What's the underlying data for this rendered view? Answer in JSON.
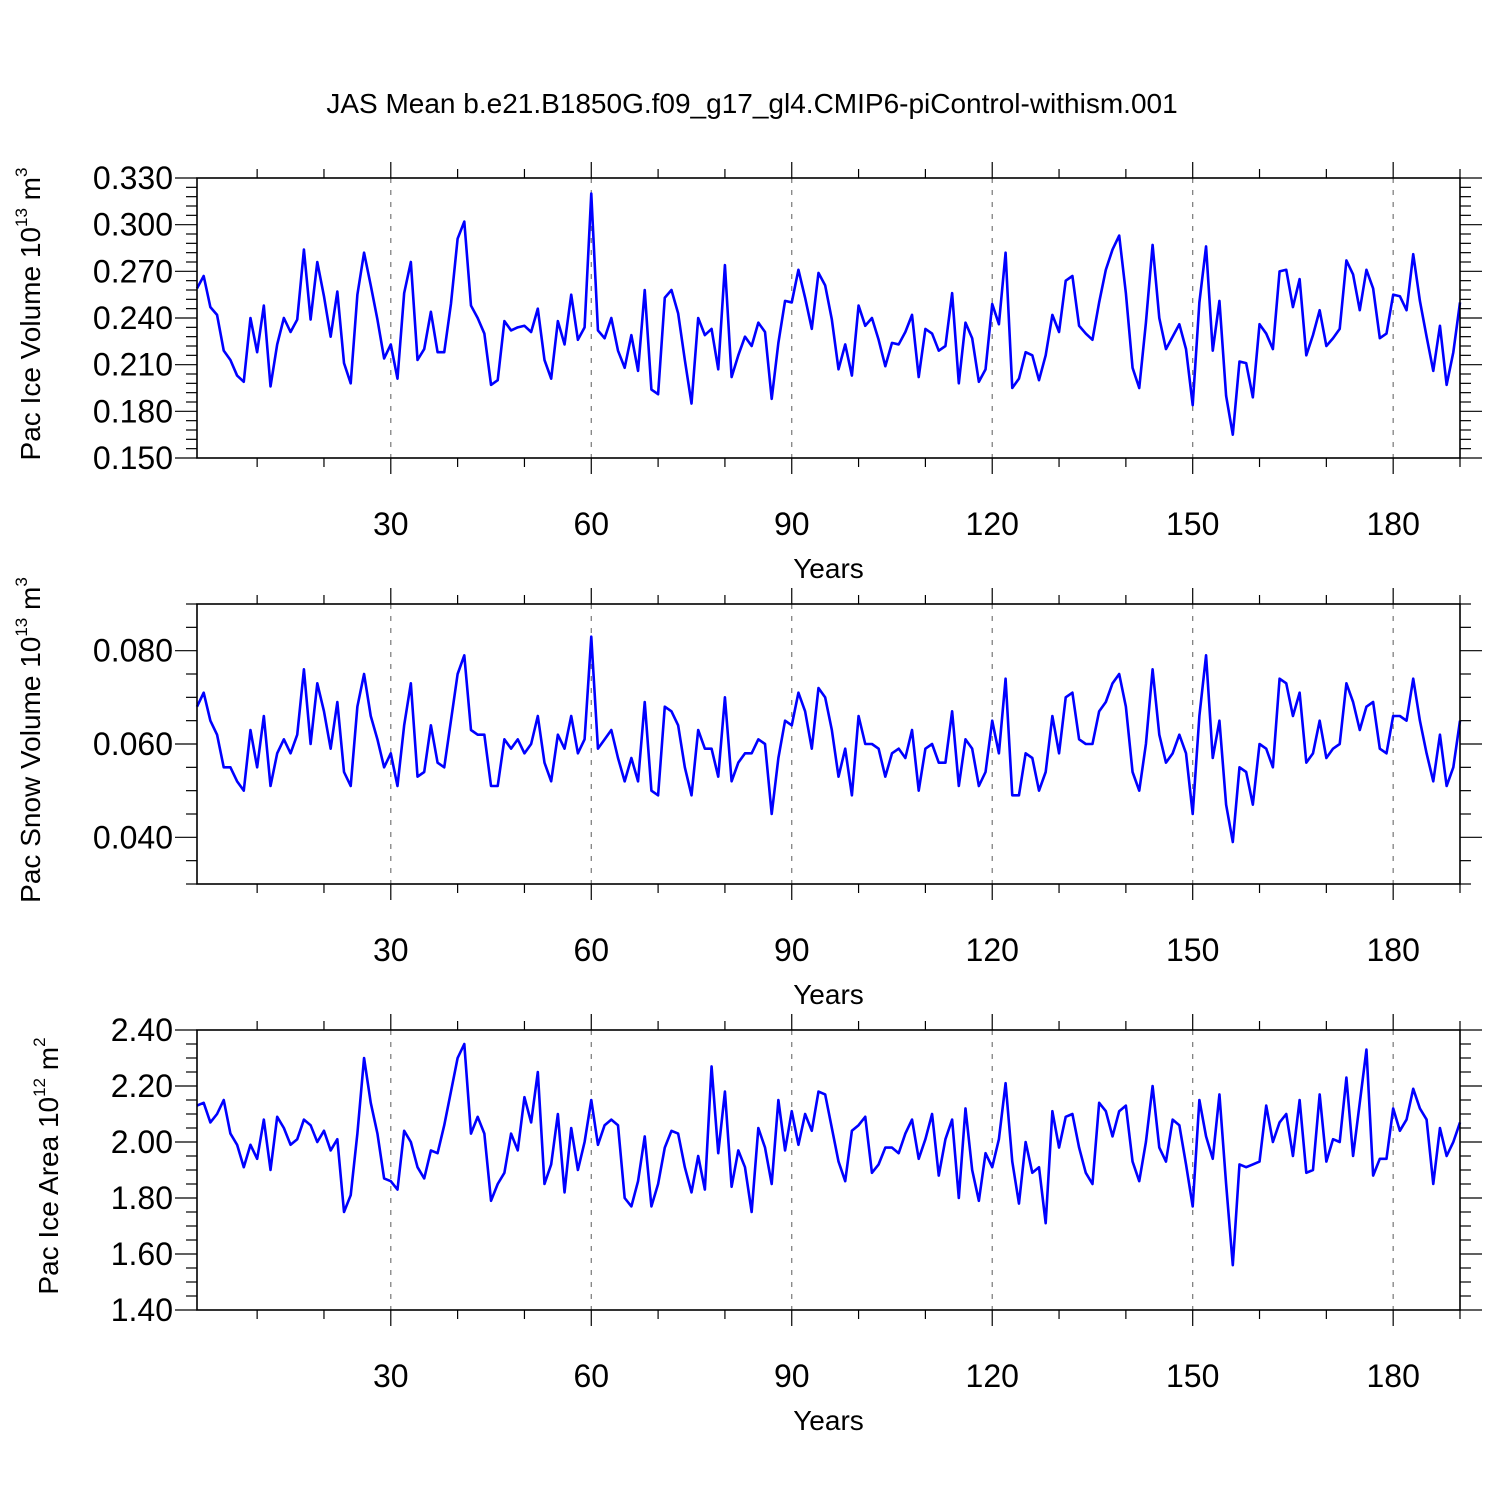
{
  "title": "JAS Mean b.e21.B1850G.f09_g17_gl4.CMIP6-piControl-withism.001",
  "colors": {
    "line": "#0000ff",
    "grid": "#777777",
    "axis": "#000000"
  },
  "chart_data": [
    {
      "type": "line",
      "name": "pac-ice-volume",
      "ylabel": "Pac Ice Volume",
      "ylabel_base": "10",
      "ylabel_exp": "13",
      "ylabel_unit": "m",
      "ylabel_unit_exp": "3",
      "xlabel": "Years",
      "xlim": [
        1,
        190
      ],
      "ylim": [
        0.15,
        0.33
      ],
      "xticks": [
        30,
        60,
        90,
        120,
        150,
        180
      ],
      "xtick_labels": [
        "30",
        "60",
        "90",
        "120",
        "150",
        "180"
      ],
      "yticks": [
        0.15,
        0.18,
        0.21,
        0.24,
        0.27,
        0.3,
        0.33
      ],
      "ytick_labels": [
        "0.150",
        "0.180",
        "0.210",
        "0.240",
        "0.270",
        "0.300",
        "0.330"
      ],
      "x_start": 1,
      "values": [
        0.259,
        0.267,
        0.247,
        0.242,
        0.219,
        0.213,
        0.203,
        0.199,
        0.24,
        0.218,
        0.248,
        0.196,
        0.223,
        0.24,
        0.231,
        0.239,
        0.284,
        0.239,
        0.276,
        0.254,
        0.228,
        0.257,
        0.211,
        0.198,
        0.255,
        0.282,
        0.261,
        0.239,
        0.214,
        0.223,
        0.201,
        0.256,
        0.276,
        0.213,
        0.22,
        0.244,
        0.218,
        0.218,
        0.249,
        0.291,
        0.302,
        0.248,
        0.24,
        0.23,
        0.197,
        0.2,
        0.238,
        0.232,
        0.234,
        0.235,
        0.231,
        0.246,
        0.213,
        0.201,
        0.238,
        0.223,
        0.255,
        0.226,
        0.234,
        0.32,
        0.232,
        0.227,
        0.24,
        0.219,
        0.208,
        0.229,
        0.206,
        0.258,
        0.194,
        0.191,
        0.253,
        0.258,
        0.243,
        0.213,
        0.185,
        0.24,
        0.229,
        0.233,
        0.207,
        0.274,
        0.202,
        0.216,
        0.228,
        0.222,
        0.237,
        0.231,
        0.188,
        0.224,
        0.251,
        0.25,
        0.271,
        0.253,
        0.233,
        0.269,
        0.261,
        0.239,
        0.207,
        0.223,
        0.203,
        0.248,
        0.235,
        0.24,
        0.226,
        0.209,
        0.224,
        0.223,
        0.231,
        0.242,
        0.202,
        0.233,
        0.23,
        0.219,
        0.222,
        0.256,
        0.198,
        0.237,
        0.227,
        0.199,
        0.207,
        0.249,
        0.236,
        0.282,
        0.195,
        0.201,
        0.218,
        0.216,
        0.2,
        0.216,
        0.242,
        0.231,
        0.264,
        0.267,
        0.235,
        0.23,
        0.226,
        0.25,
        0.271,
        0.284,
        0.293,
        0.256,
        0.208,
        0.195,
        0.237,
        0.287,
        0.24,
        0.22,
        0.228,
        0.236,
        0.22,
        0.184,
        0.25,
        0.286,
        0.219,
        0.251,
        0.19,
        0.165,
        0.212,
        0.211,
        0.189,
        0.236,
        0.23,
        0.22,
        0.27,
        0.271,
        0.247,
        0.265,
        0.216,
        0.229,
        0.245,
        0.222,
        0.227,
        0.233,
        0.277,
        0.268,
        0.245,
        0.271,
        0.259,
        0.227,
        0.23,
        0.255,
        0.254,
        0.245,
        0.281,
        0.251,
        0.228,
        0.206,
        0.235,
        0.197,
        0.218,
        0.25
      ]
    },
    {
      "type": "line",
      "name": "pac-snow-volume",
      "ylabel": "Pac Snow Volume",
      "ylabel_base": "10",
      "ylabel_exp": "13",
      "ylabel_unit": "m",
      "ylabel_unit_exp": "3",
      "xlabel": "Years",
      "xlim": [
        1,
        190
      ],
      "ylim": [
        0.03,
        0.09
      ],
      "xticks": [
        30,
        60,
        90,
        120,
        150,
        180
      ],
      "xtick_labels": [
        "30",
        "60",
        "90",
        "120",
        "150",
        "180"
      ],
      "yticks": [
        0.04,
        0.06,
        0.08
      ],
      "ytick_labels": [
        "0.040",
        "0.060",
        "0.080"
      ],
      "x_start": 1,
      "values": [
        0.068,
        0.071,
        0.065,
        0.062,
        0.055,
        0.055,
        0.052,
        0.05,
        0.063,
        0.055,
        0.066,
        0.051,
        0.058,
        0.061,
        0.058,
        0.062,
        0.076,
        0.06,
        0.073,
        0.067,
        0.059,
        0.069,
        0.054,
        0.051,
        0.068,
        0.075,
        0.066,
        0.061,
        0.055,
        0.058,
        0.051,
        0.064,
        0.073,
        0.053,
        0.054,
        0.064,
        0.056,
        0.055,
        0.065,
        0.075,
        0.079,
        0.063,
        0.062,
        0.062,
        0.051,
        0.051,
        0.061,
        0.059,
        0.061,
        0.058,
        0.06,
        0.066,
        0.056,
        0.052,
        0.062,
        0.059,
        0.066,
        0.058,
        0.061,
        0.083,
        0.059,
        0.061,
        0.063,
        0.057,
        0.052,
        0.057,
        0.052,
        0.069,
        0.05,
        0.049,
        0.068,
        0.067,
        0.064,
        0.055,
        0.049,
        0.063,
        0.059,
        0.059,
        0.053,
        0.07,
        0.052,
        0.056,
        0.058,
        0.058,
        0.061,
        0.06,
        0.045,
        0.057,
        0.065,
        0.064,
        0.071,
        0.067,
        0.059,
        0.072,
        0.07,
        0.063,
        0.053,
        0.059,
        0.049,
        0.066,
        0.06,
        0.06,
        0.059,
        0.053,
        0.058,
        0.059,
        0.057,
        0.063,
        0.05,
        0.059,
        0.06,
        0.056,
        0.056,
        0.067,
        0.051,
        0.061,
        0.059,
        0.051,
        0.054,
        0.065,
        0.058,
        0.074,
        0.049,
        0.049,
        0.058,
        0.057,
        0.05,
        0.054,
        0.066,
        0.058,
        0.07,
        0.071,
        0.061,
        0.06,
        0.06,
        0.067,
        0.069,
        0.073,
        0.075,
        0.068,
        0.054,
        0.05,
        0.06,
        0.076,
        0.062,
        0.056,
        0.058,
        0.062,
        0.058,
        0.045,
        0.066,
        0.079,
        0.057,
        0.065,
        0.047,
        0.039,
        0.055,
        0.054,
        0.047,
        0.06,
        0.059,
        0.055,
        0.074,
        0.073,
        0.066,
        0.071,
        0.056,
        0.058,
        0.065,
        0.057,
        0.059,
        0.06,
        0.073,
        0.069,
        0.063,
        0.068,
        0.069,
        0.059,
        0.058,
        0.066,
        0.066,
        0.065,
        0.074,
        0.065,
        0.058,
        0.052,
        0.062,
        0.051,
        0.055,
        0.065
      ]
    },
    {
      "type": "line",
      "name": "pac-ice-area",
      "ylabel": "Pac Ice Area",
      "ylabel_base": "10",
      "ylabel_exp": "12",
      "ylabel_unit": "m",
      "ylabel_unit_exp": "2",
      "xlabel": "Years",
      "xlim": [
        1,
        190
      ],
      "ylim": [
        1.4,
        2.4
      ],
      "xticks": [
        30,
        60,
        90,
        120,
        150,
        180
      ],
      "xtick_labels": [
        "30",
        "60",
        "90",
        "120",
        "150",
        "180"
      ],
      "yticks": [
        1.4,
        1.6,
        1.8,
        2.0,
        2.2,
        2.4
      ],
      "ytick_labels": [
        "1.40",
        "1.60",
        "1.80",
        "2.00",
        "2.20",
        "2.40"
      ],
      "x_start": 1,
      "values": [
        2.13,
        2.14,
        2.07,
        2.1,
        2.15,
        2.03,
        1.99,
        1.91,
        1.99,
        1.94,
        2.08,
        1.9,
        2.09,
        2.05,
        1.99,
        2.01,
        2.08,
        2.06,
        2.0,
        2.04,
        1.97,
        2.01,
        1.75,
        1.81,
        2.03,
        2.3,
        2.14,
        2.03,
        1.87,
        1.86,
        1.83,
        2.04,
        2.0,
        1.91,
        1.87,
        1.97,
        1.96,
        2.06,
        2.18,
        2.3,
        2.35,
        2.03,
        2.09,
        2.03,
        1.79,
        1.85,
        1.89,
        2.03,
        1.97,
        2.16,
        2.07,
        2.25,
        1.85,
        1.92,
        2.1,
        1.82,
        2.05,
        1.9,
        2.0,
        2.15,
        1.99,
        2.06,
        2.08,
        2.06,
        1.8,
        1.77,
        1.86,
        2.02,
        1.77,
        1.85,
        1.98,
        2.04,
        2.03,
        1.91,
        1.82,
        1.95,
        1.83,
        2.27,
        1.96,
        2.18,
        1.84,
        1.97,
        1.91,
        1.75,
        2.05,
        1.98,
        1.85,
        2.15,
        1.97,
        2.11,
        1.99,
        2.1,
        2.04,
        2.18,
        2.17,
        2.05,
        1.93,
        1.86,
        2.04,
        2.06,
        2.09,
        1.89,
        1.92,
        1.98,
        1.98,
        1.96,
        2.03,
        2.08,
        1.94,
        2.01,
        2.1,
        1.88,
        2.01,
        2.08,
        1.8,
        2.12,
        1.9,
        1.79,
        1.96,
        1.91,
        2.01,
        2.21,
        1.93,
        1.78,
        2.0,
        1.89,
        1.91,
        1.71,
        2.11,
        1.98,
        2.09,
        2.1,
        1.98,
        1.89,
        1.85,
        2.14,
        2.11,
        2.02,
        2.11,
        2.13,
        1.93,
        1.86,
        2.0,
        2.2,
        1.98,
        1.93,
        2.08,
        2.06,
        1.92,
        1.77,
        2.15,
        2.02,
        1.94,
        2.17,
        1.85,
        1.56,
        1.92,
        1.91,
        1.92,
        1.93,
        2.13,
        2.0,
        2.07,
        2.1,
        1.95,
        2.15,
        1.89,
        1.9,
        2.17,
        1.93,
        2.01,
        2.0,
        2.23,
        1.95,
        2.14,
        2.33,
        1.88,
        1.94,
        1.94,
        2.12,
        2.04,
        2.08,
        2.19,
        2.12,
        2.08,
        1.85,
        2.05,
        1.95,
        2.0,
        2.07
      ]
    }
  ]
}
